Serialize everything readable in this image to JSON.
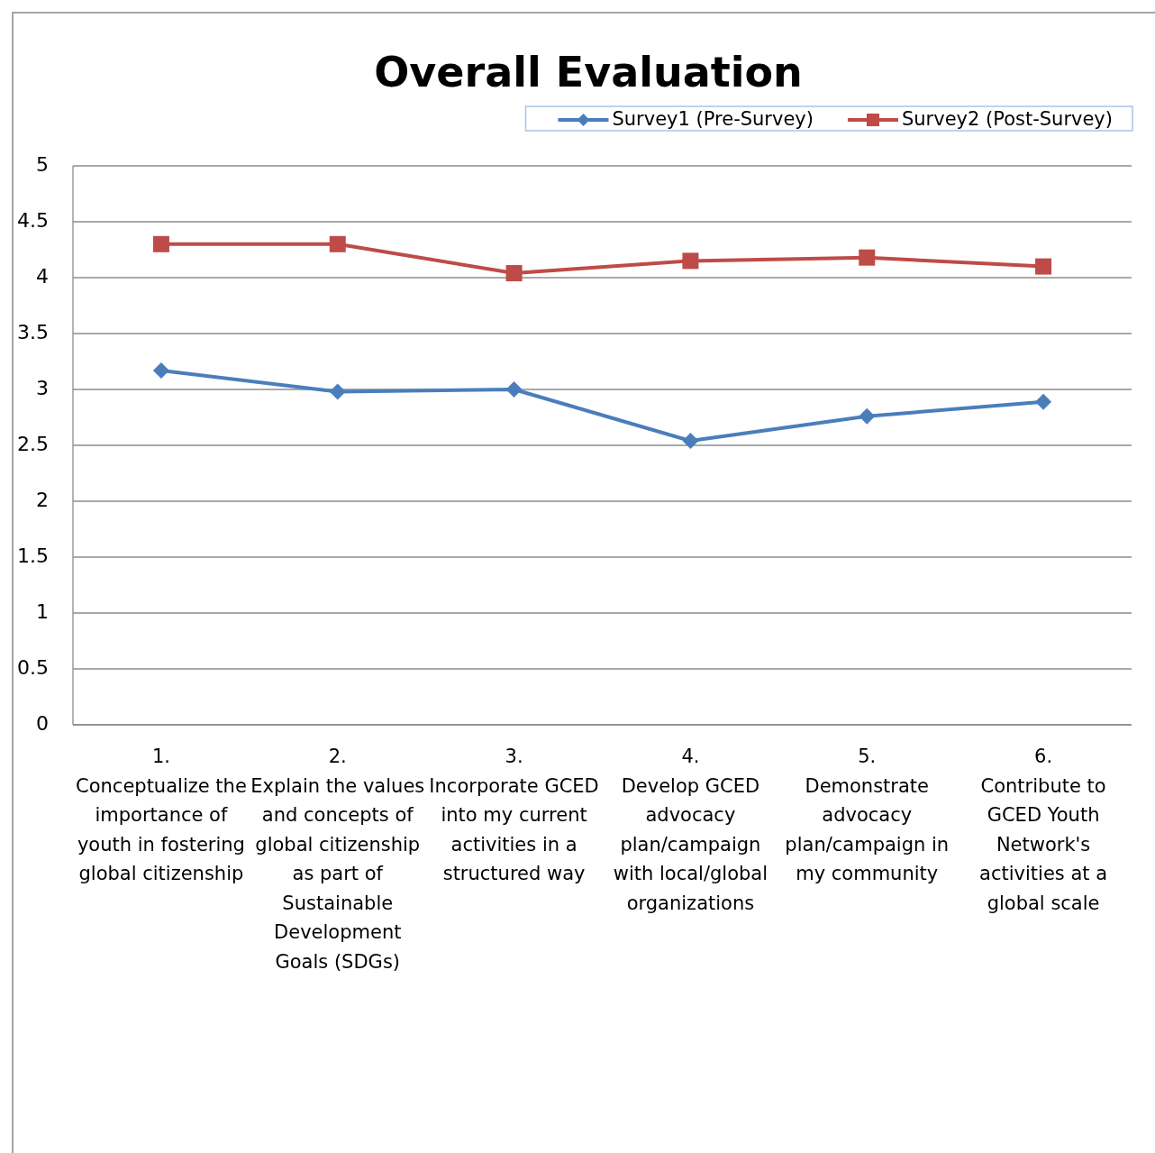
{
  "chart_data": {
    "type": "line",
    "title": "Overall Evaluation",
    "categories": [
      "1.\nConceptualize the importance of youth in fostering global citizenship",
      "2.\nExplain the values and concepts of global citizenship as part of Sustainable Development Goals (SDGs)",
      "3.\nIncorporate GCED into my current activities in a structured way",
      "4.\nDevelop GCED advocacy plan/campaign with local/global organizations",
      "5.\nDemonstrate advocacy plan/campaign in my community",
      "6.\nContribute to GCED Youth Network's activities at a global scale"
    ],
    "series": [
      {
        "name": "Survey1 (Pre-Survey)",
        "color": "#4a7ebb",
        "marker": "diamond",
        "values": [
          3.17,
          2.98,
          3.0,
          2.54,
          2.76,
          2.89
        ]
      },
      {
        "name": "Survey2 (Post-Survey)",
        "color": "#be4b48",
        "marker": "square",
        "values": [
          4.3,
          4.3,
          4.04,
          4.15,
          4.18,
          4.1
        ]
      }
    ],
    "ylim": [
      0,
      5
    ],
    "yticks": [
      0,
      0.5,
      1,
      1.5,
      2,
      2.5,
      3,
      3.5,
      4,
      4.5,
      5
    ],
    "grid": "y",
    "legend": "top right",
    "line_style": "solid"
  }
}
